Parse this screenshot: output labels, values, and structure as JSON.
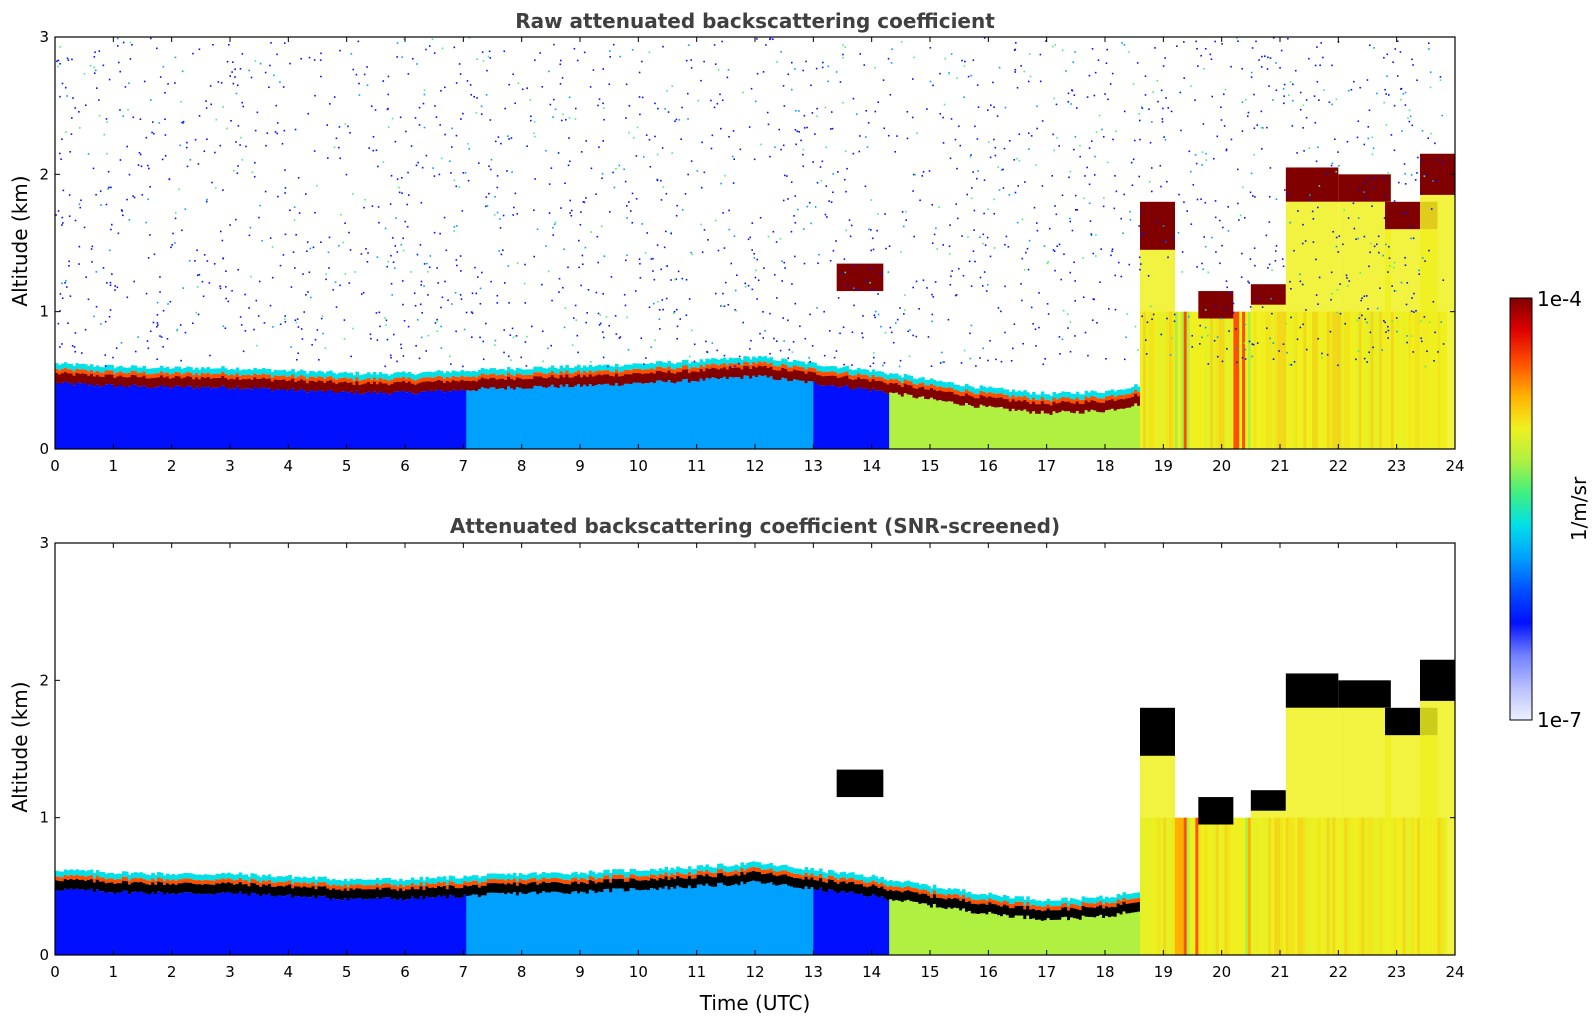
{
  "colors": {
    "colormap": [
      "#eef0ff",
      "#b8c0ff",
      "#7080ff",
      "#0010ff",
      "#0050ff",
      "#00a0ff",
      "#00e0e8",
      "#40f080",
      "#b0f040",
      "#f0f020",
      "#ffb000",
      "#ff5000",
      "#e00000",
      "#800000"
    ],
    "screened_max": "#000000",
    "frame": "#000000"
  },
  "colorbar": {
    "top_label": "1e-4",
    "bottom_label": "1e-7",
    "title": "1/m/sr"
  },
  "chart_data": [
    {
      "type": "heatmap",
      "title": "Raw attenuated backscattering coefficient",
      "xlabel": "",
      "ylabel": "Altitude (km)",
      "xlim": [
        0,
        24
      ],
      "ylim": [
        0,
        3
      ],
      "xticks": [
        "0",
        "1",
        "2",
        "3",
        "4",
        "5",
        "6",
        "7",
        "8",
        "9",
        "10",
        "11",
        "12",
        "13",
        "14",
        "15",
        "16",
        "17",
        "18",
        "19",
        "20",
        "21",
        "22",
        "23",
        "24"
      ],
      "yticks": [
        "0",
        "1",
        "2",
        "3"
      ],
      "colorbar_range": [
        "1e-7",
        "1e-4"
      ],
      "colorbar_unit": "1/m/sr",
      "layer_top_km": [
        [
          0,
          0.6
        ],
        [
          1,
          0.58
        ],
        [
          2,
          0.57
        ],
        [
          3,
          0.57
        ],
        [
          4,
          0.55
        ],
        [
          5,
          0.53
        ],
        [
          6,
          0.53
        ],
        [
          7,
          0.55
        ],
        [
          8,
          0.57
        ],
        [
          9,
          0.58
        ],
        [
          10,
          0.6
        ],
        [
          11,
          0.62
        ],
        [
          12,
          0.65
        ],
        [
          13,
          0.6
        ],
        [
          14,
          0.55
        ],
        [
          15,
          0.48
        ],
        [
          16,
          0.42
        ],
        [
          17,
          0.38
        ],
        [
          18,
          0.4
        ],
        [
          18.6,
          0.45
        ]
      ],
      "elevated_cloud_km": [
        [
          13.4,
          1.15,
          1.35
        ],
        [
          18.6,
          1.45,
          1.8
        ],
        [
          19.6,
          0.95,
          1.15
        ],
        [
          20.5,
          1.05,
          1.2
        ],
        [
          21.1,
          1.8,
          2.05
        ],
        [
          22,
          1.8,
          2.0
        ],
        [
          22.8,
          1.6,
          1.8
        ],
        [
          23.4,
          1.85,
          2.15
        ]
      ],
      "noise": "high"
    },
    {
      "type": "heatmap",
      "title": "Attenuated backscattering coefficient (SNR-screened)",
      "xlabel": "Time (UTC)",
      "ylabel": "Altitude (km)",
      "xlim": [
        0,
        24
      ],
      "ylim": [
        0,
        3
      ],
      "xticks": [
        "0",
        "1",
        "2",
        "3",
        "4",
        "5",
        "6",
        "7",
        "8",
        "9",
        "10",
        "11",
        "12",
        "13",
        "14",
        "15",
        "16",
        "17",
        "18",
        "19",
        "20",
        "21",
        "22",
        "23",
        "24"
      ],
      "yticks": [
        "0",
        "1",
        "2",
        "3"
      ],
      "colorbar_range": [
        "1e-7",
        "1e-4"
      ],
      "colorbar_unit": "1/m/sr",
      "layer_top_km": [
        [
          0,
          0.6
        ],
        [
          1,
          0.58
        ],
        [
          2,
          0.57
        ],
        [
          3,
          0.57
        ],
        [
          4,
          0.55
        ],
        [
          5,
          0.53
        ],
        [
          6,
          0.53
        ],
        [
          7,
          0.55
        ],
        [
          8,
          0.57
        ],
        [
          9,
          0.58
        ],
        [
          10,
          0.6
        ],
        [
          11,
          0.62
        ],
        [
          12,
          0.65
        ],
        [
          13,
          0.6
        ],
        [
          14,
          0.55
        ],
        [
          15,
          0.48
        ],
        [
          16,
          0.42
        ],
        [
          17,
          0.38
        ],
        [
          18,
          0.4
        ],
        [
          18.6,
          0.45
        ]
      ],
      "elevated_cloud_km": [
        [
          13.4,
          1.15,
          1.35
        ],
        [
          18.6,
          1.45,
          1.8
        ],
        [
          19.6,
          0.95,
          1.15
        ],
        [
          20.5,
          1.05,
          1.2
        ],
        [
          21.1,
          1.8,
          2.05
        ],
        [
          22,
          1.8,
          2.0
        ],
        [
          22.8,
          1.6,
          1.8
        ],
        [
          23.4,
          1.85,
          2.15
        ]
      ],
      "noise": "none"
    }
  ]
}
